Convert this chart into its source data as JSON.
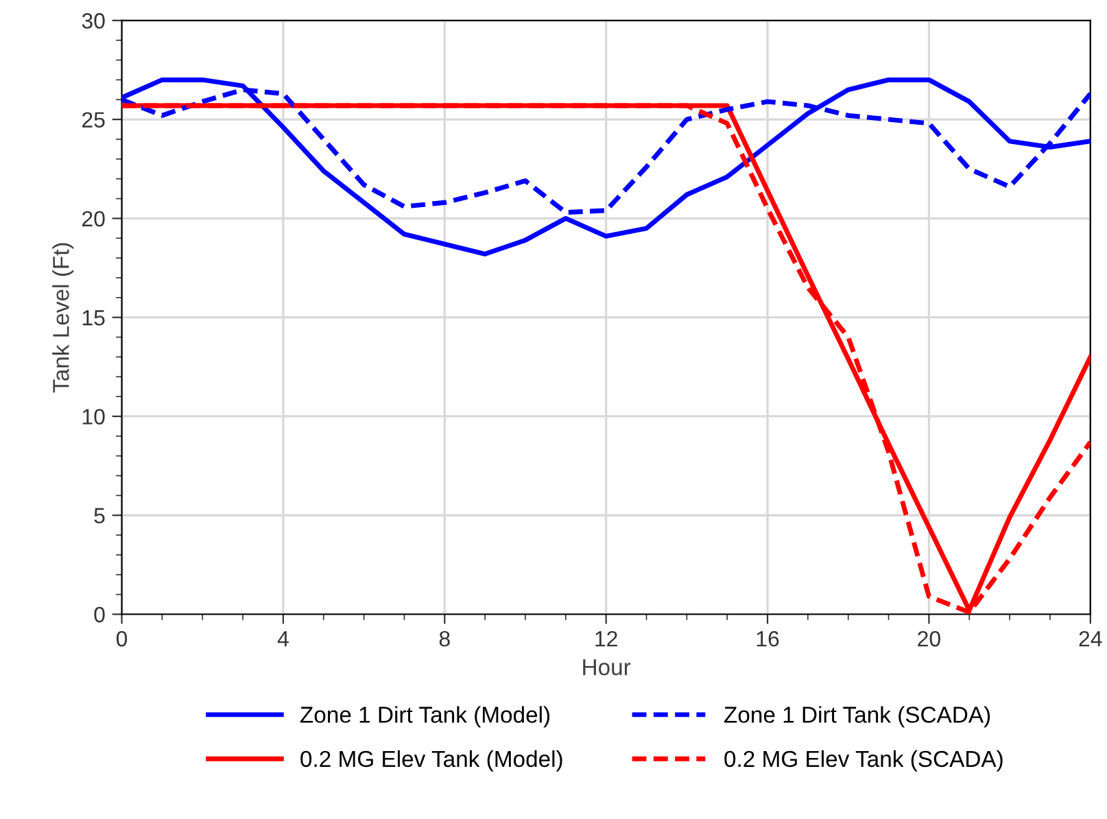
{
  "chart_data": {
    "type": "line",
    "xlabel": "Hour",
    "ylabel": "Tank Level (Ft)",
    "x": [
      0,
      1,
      2,
      3,
      4,
      5,
      6,
      7,
      8,
      9,
      10,
      11,
      12,
      13,
      14,
      15,
      16,
      17,
      18,
      19,
      20,
      21,
      22,
      23,
      24
    ],
    "series": [
      {
        "name": "Zone 1 Dirt Tank (Model)",
        "color": "#0000ff",
        "line_style": "solid",
        "values": [
          26.1,
          27.0,
          27.0,
          26.7,
          24.6,
          22.4,
          20.8,
          19.2,
          18.7,
          18.2,
          18.9,
          20.0,
          19.1,
          19.5,
          21.2,
          22.1,
          23.7,
          25.3,
          26.5,
          27.0,
          27.0,
          25.9,
          23.9,
          23.6,
          23.9
        ]
      },
      {
        "name": "0.2 MG Elev Tank (Model)",
        "color": "#ff0000",
        "line_style": "solid",
        "values": [
          25.7,
          25.7,
          25.7,
          25.7,
          25.7,
          25.7,
          25.7,
          25.7,
          25.7,
          25.7,
          25.7,
          25.7,
          25.7,
          25.7,
          25.7,
          25.7,
          21.4,
          17.1,
          12.9,
          8.6,
          4.4,
          0.2,
          4.9,
          8.8,
          13.0
        ]
      },
      {
        "name": "Zone 1 Dirt Tank (SCADA)",
        "color": "#0000ff",
        "line_style": "dashed",
        "values": [
          26.0,
          25.2,
          25.9,
          26.5,
          26.3,
          24.0,
          21.7,
          20.6,
          20.8,
          21.3,
          21.9,
          20.3,
          20.4,
          22.6,
          25.0,
          25.5,
          25.9,
          25.7,
          25.2,
          25.0,
          24.8,
          22.5,
          21.6,
          23.8,
          26.3
        ]
      },
      {
        "name": "0.2 MG Elev Tank (SCADA)",
        "color": "#ff0000",
        "line_style": "dashed",
        "values": [
          25.7,
          25.7,
          25.7,
          25.7,
          25.7,
          25.7,
          25.7,
          25.7,
          25.7,
          25.7,
          25.7,
          25.7,
          25.7,
          25.7,
          25.7,
          24.8,
          20.5,
          16.5,
          14.0,
          8.2,
          0.9,
          0.1,
          2.8,
          5.9,
          8.7
        ]
      }
    ],
    "xlim": [
      0,
      24
    ],
    "xticks": [
      0,
      4,
      8,
      12,
      16,
      20,
      24
    ],
    "ylim": [
      0,
      30
    ],
    "yticks": [
      0,
      5,
      10,
      15,
      20,
      25,
      30
    ],
    "grid": true,
    "legend": "bottom",
    "marker": "none"
  }
}
